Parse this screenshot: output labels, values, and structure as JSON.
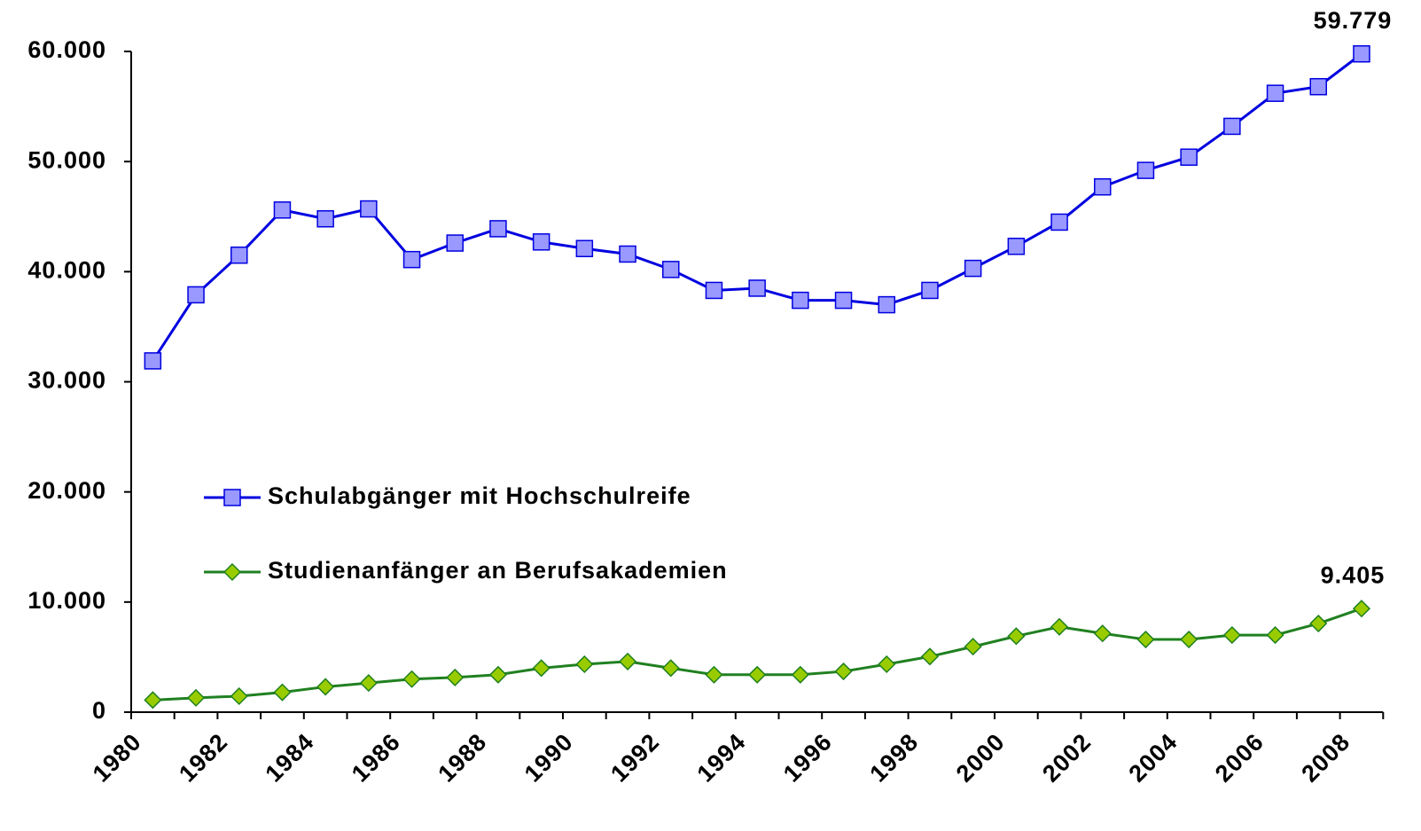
{
  "chart_data": {
    "type": "line",
    "categories": [
      "1980",
      null,
      "1982",
      null,
      "1984",
      null,
      "1986",
      null,
      "1988",
      null,
      "1990",
      null,
      "1992",
      null,
      "1994",
      null,
      "1996",
      null,
      "1998",
      null,
      "2000",
      null,
      "2002",
      null,
      "2004",
      null,
      "2006",
      null,
      "2008"
    ],
    "series": [
      {
        "name": "Schulabgänger mit Hochschulreife",
        "color": "#0000e0",
        "marker_color": "#9999ff",
        "marker": "square",
        "values": [
          31900,
          37900,
          41500,
          45600,
          44800,
          45700,
          41100,
          42600,
          43900,
          42700,
          42100,
          41600,
          40200,
          38300,
          38500,
          37400,
          37400,
          37000,
          38300,
          40300,
          42300,
          44500,
          47700,
          49200,
          50400,
          53200,
          56200,
          56800,
          59779
        ],
        "value_labels": [
          null,
          null,
          null,
          null,
          null,
          null,
          null,
          null,
          null,
          null,
          null,
          null,
          null,
          null,
          null,
          null,
          null,
          null,
          null,
          null,
          null,
          null,
          null,
          null,
          null,
          null,
          null,
          null,
          "59.779"
        ]
      },
      {
        "name": "Studienanfänger an Berufsakademien",
        "color": "#208020",
        "marker_color": "#99cc00",
        "marker": "diamond",
        "values": [
          1100,
          1300,
          1450,
          1800,
          2300,
          2650,
          3000,
          3150,
          3400,
          4000,
          4350,
          4600,
          4000,
          3400,
          3400,
          3400,
          3700,
          4350,
          5050,
          5950,
          6900,
          7750,
          7150,
          6600,
          6600,
          7000,
          7000,
          8050,
          9405
        ],
        "value_labels": [
          null,
          null,
          null,
          null,
          null,
          null,
          null,
          null,
          null,
          null,
          null,
          null,
          null,
          null,
          null,
          null,
          null,
          null,
          null,
          null,
          null,
          null,
          null,
          null,
          null,
          null,
          null,
          null,
          "9.405"
        ]
      }
    ],
    "ylim": [
      0,
      60000
    ],
    "yticks": [
      0,
      {
        "value": 10000,
        "label": "10.000"
      },
      {
        "value": 20000,
        "label": "20.000"
      },
      {
        "value": 30000,
        "label": "30.000"
      },
      {
        "value": 40000,
        "label": "40.000"
      },
      {
        "value": 50000,
        "label": "50.000"
      },
      {
        "value": 60000,
        "label": "60.000"
      }
    ],
    "grid": false,
    "legend_position": "left"
  }
}
